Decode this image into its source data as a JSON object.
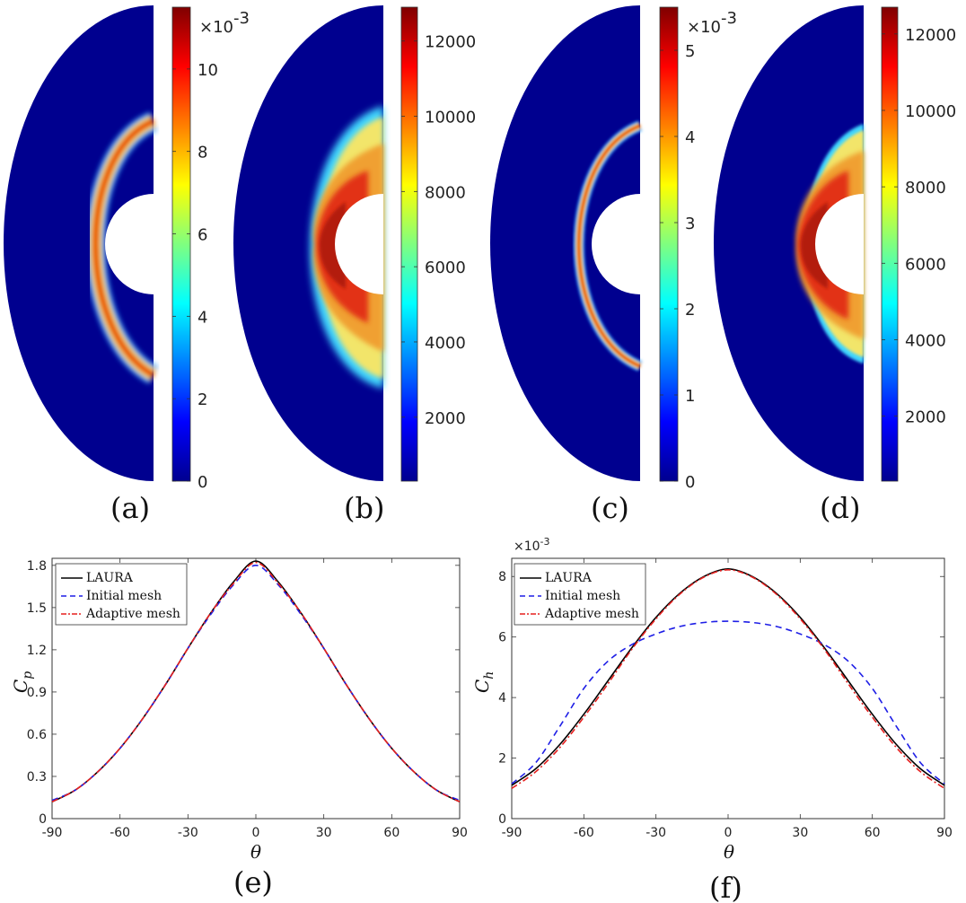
{
  "panels": {
    "a": {
      "label": "(a)",
      "colorbar": {
        "ticks": [
          "0",
          "2",
          "4",
          "6",
          "8",
          "10"
        ],
        "tick_values": [
          0,
          2,
          4,
          6,
          8,
          10
        ],
        "min": 0,
        "max": 11.5,
        "multiplier": "×10",
        "exponent": "-3"
      }
    },
    "b": {
      "label": "(b)",
      "colorbar": {
        "ticks": [
          "2000",
          "4000",
          "6000",
          "8000",
          "10000",
          "12000"
        ],
        "tick_values": [
          2000,
          4000,
          6000,
          8000,
          10000,
          12000
        ],
        "min": 300,
        "max": 12900
      }
    },
    "c": {
      "label": "(c)",
      "colorbar": {
        "ticks": [
          "0",
          "1",
          "2",
          "3",
          "4",
          "5"
        ],
        "tick_values": [
          0,
          1,
          2,
          3,
          4,
          5
        ],
        "min": 0,
        "max": 5.5,
        "multiplier": "×10",
        "exponent": "-3"
      }
    },
    "d": {
      "label": "(d)",
      "colorbar": {
        "ticks": [
          "2000",
          "4000",
          "6000",
          "8000",
          "10000",
          "12000"
        ],
        "tick_values": [
          2000,
          4000,
          6000,
          8000,
          10000,
          12000
        ],
        "min": 300,
        "max": 12700
      }
    },
    "e": {
      "label": "(e)"
    },
    "f": {
      "label": "(f)"
    }
  },
  "legend": [
    "LAURA",
    "Initial mesh",
    "Adaptive mesh"
  ],
  "colors": {
    "laura": "#000000",
    "initial": "#1f1fe6",
    "adaptive": "#e6201f",
    "field_bg": "#00008f"
  },
  "chart_data": [
    {
      "type": "line",
      "title": "",
      "xlabel": "θ",
      "ylabel": "C",
      "ylabel_sub": "p",
      "xlim": [
        -90,
        90
      ],
      "ylim": [
        0,
        1.85
      ],
      "xticks": [
        "-90",
        "-60",
        "-30",
        "0",
        "30",
        "60",
        "90"
      ],
      "xtick_values": [
        -90,
        -60,
        -30,
        0,
        30,
        60,
        90
      ],
      "yticks": [
        "0",
        "0.3",
        "0.6",
        "0.9",
        "1.2",
        "1.5",
        "1.8"
      ],
      "ytick_values": [
        0,
        0.3,
        0.6,
        0.9,
        1.2,
        1.5,
        1.8
      ],
      "x": [
        -90,
        -80,
        -70,
        -60,
        -50,
        -40,
        -30,
        -20,
        -10,
        0,
        10,
        20,
        30,
        40,
        50,
        60,
        70,
        80,
        90
      ],
      "series": [
        {
          "name": "LAURA",
          "values": [
            0.12,
            0.2,
            0.33,
            0.5,
            0.71,
            0.95,
            1.21,
            1.46,
            1.68,
            1.83,
            1.68,
            1.46,
            1.21,
            0.95,
            0.71,
            0.5,
            0.33,
            0.2,
            0.12
          ]
        },
        {
          "name": "Initial mesh",
          "values": [
            0.13,
            0.2,
            0.33,
            0.5,
            0.71,
            0.95,
            1.21,
            1.45,
            1.66,
            1.8,
            1.66,
            1.45,
            1.21,
            0.95,
            0.71,
            0.5,
            0.33,
            0.2,
            0.13
          ]
        },
        {
          "name": "Adaptive mesh",
          "values": [
            0.12,
            0.2,
            0.33,
            0.5,
            0.71,
            0.95,
            1.21,
            1.46,
            1.67,
            1.82,
            1.67,
            1.46,
            1.21,
            0.95,
            0.71,
            0.5,
            0.33,
            0.2,
            0.12
          ]
        }
      ]
    },
    {
      "type": "line",
      "title": "",
      "xlabel": "θ",
      "ylabel": "C",
      "ylabel_sub": "h",
      "exponent_label": "×10",
      "exponent_value": "-3",
      "xlim": [
        -90,
        90
      ],
      "ylim": [
        0,
        8.6
      ],
      "xticks": [
        "-90",
        "-60",
        "-30",
        "0",
        "30",
        "60",
        "90"
      ],
      "xtick_values": [
        -90,
        -60,
        -30,
        0,
        30,
        60,
        90
      ],
      "yticks": [
        "0",
        "2",
        "4",
        "6",
        "8"
      ],
      "ytick_values": [
        0,
        2,
        4,
        6,
        8
      ],
      "x": [
        -90,
        -80,
        -70,
        -60,
        -50,
        -40,
        -30,
        -20,
        -10,
        0,
        10,
        20,
        30,
        40,
        50,
        60,
        70,
        80,
        90
      ],
      "series": [
        {
          "name": "LAURA",
          "values": [
            1.1,
            1.65,
            2.45,
            3.45,
            4.55,
            5.65,
            6.65,
            7.45,
            8.0,
            8.25,
            8.0,
            7.45,
            6.65,
            5.65,
            4.55,
            3.45,
            2.45,
            1.65,
            1.1
          ]
        },
        {
          "name": "Initial mesh",
          "values": [
            1.15,
            1.85,
            3.05,
            4.3,
            5.2,
            5.75,
            6.1,
            6.35,
            6.48,
            6.52,
            6.48,
            6.35,
            6.1,
            5.75,
            5.2,
            4.3,
            3.05,
            1.85,
            1.15
          ]
        },
        {
          "name": "Adaptive mesh",
          "values": [
            1.0,
            1.55,
            2.35,
            3.35,
            4.45,
            5.6,
            6.6,
            7.42,
            7.98,
            8.22,
            7.98,
            7.42,
            6.6,
            5.6,
            4.45,
            3.35,
            2.35,
            1.55,
            1.0
          ]
        }
      ]
    }
  ]
}
